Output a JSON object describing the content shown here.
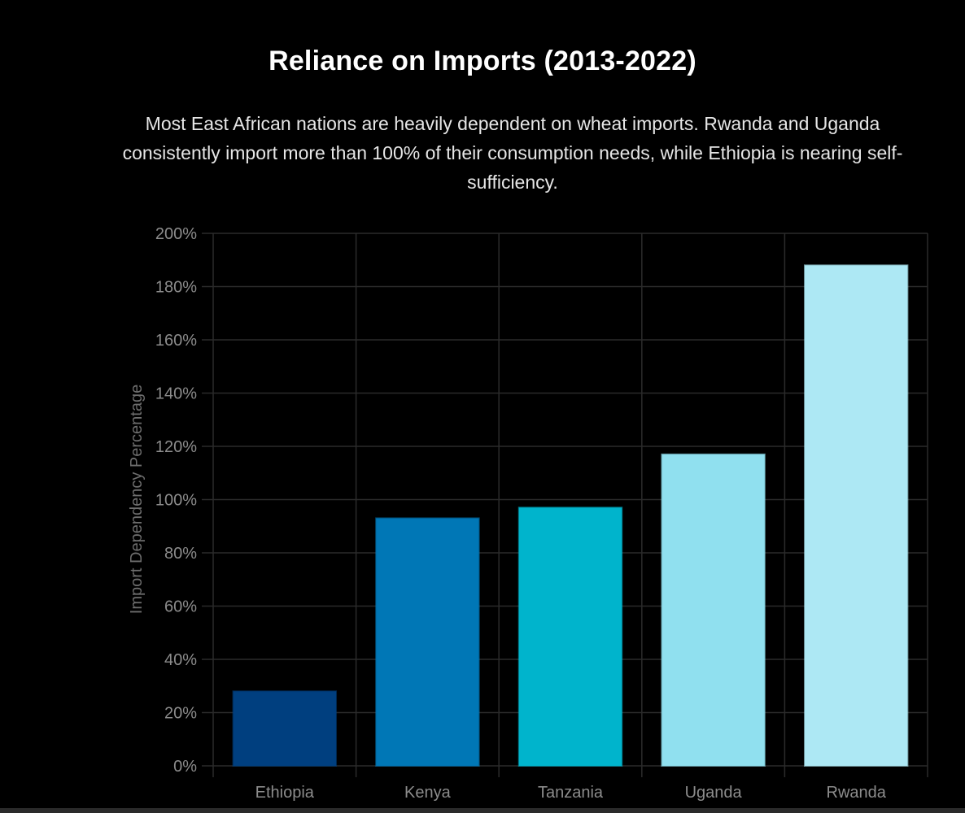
{
  "header": {
    "title": "Reliance on Imports (2013-2022)",
    "subtitle": "Most East African nations are heavily dependent on wheat imports. Rwanda and Uganda consistently import more than 100% of their consumption needs, while Ethiopia is nearing self-sufficiency."
  },
  "chart_data": {
    "type": "bar",
    "title": "Reliance on Imports (2013-2022)",
    "subtitle": "Most East African nations are heavily dependent on wheat imports. Rwanda and Uganda consistently import more than 100% of their consumption needs, while Ethiopia is nearing self-sufficiency.",
    "categories": [
      "Ethiopia",
      "Kenya",
      "Tanzania",
      "Uganda",
      "Rwanda"
    ],
    "values": [
      28,
      93,
      97,
      117,
      188
    ],
    "bar_colors": [
      "#003f7f",
      "#0077b6",
      "#00b4cc",
      "#90e0ef",
      "#ade8f4"
    ],
    "ylabel": "Import Dependency Percentage",
    "xlabel": "",
    "ylim": [
      0,
      200
    ],
    "yticks": [
      0,
      20,
      40,
      60,
      80,
      100,
      120,
      140,
      160,
      180,
      200
    ],
    "ytick_labels": [
      "0%",
      "20%",
      "40%",
      "60%",
      "80%",
      "100%",
      "120%",
      "140%",
      "160%",
      "180%",
      "200%"
    ],
    "grid": true,
    "legend": "none"
  },
  "colors": {
    "background": "#000000",
    "grid": "#2b2b2b",
    "tick_text": "#8c8c8c",
    "title": "#ffffff",
    "subtitle": "#e6e6e6"
  }
}
